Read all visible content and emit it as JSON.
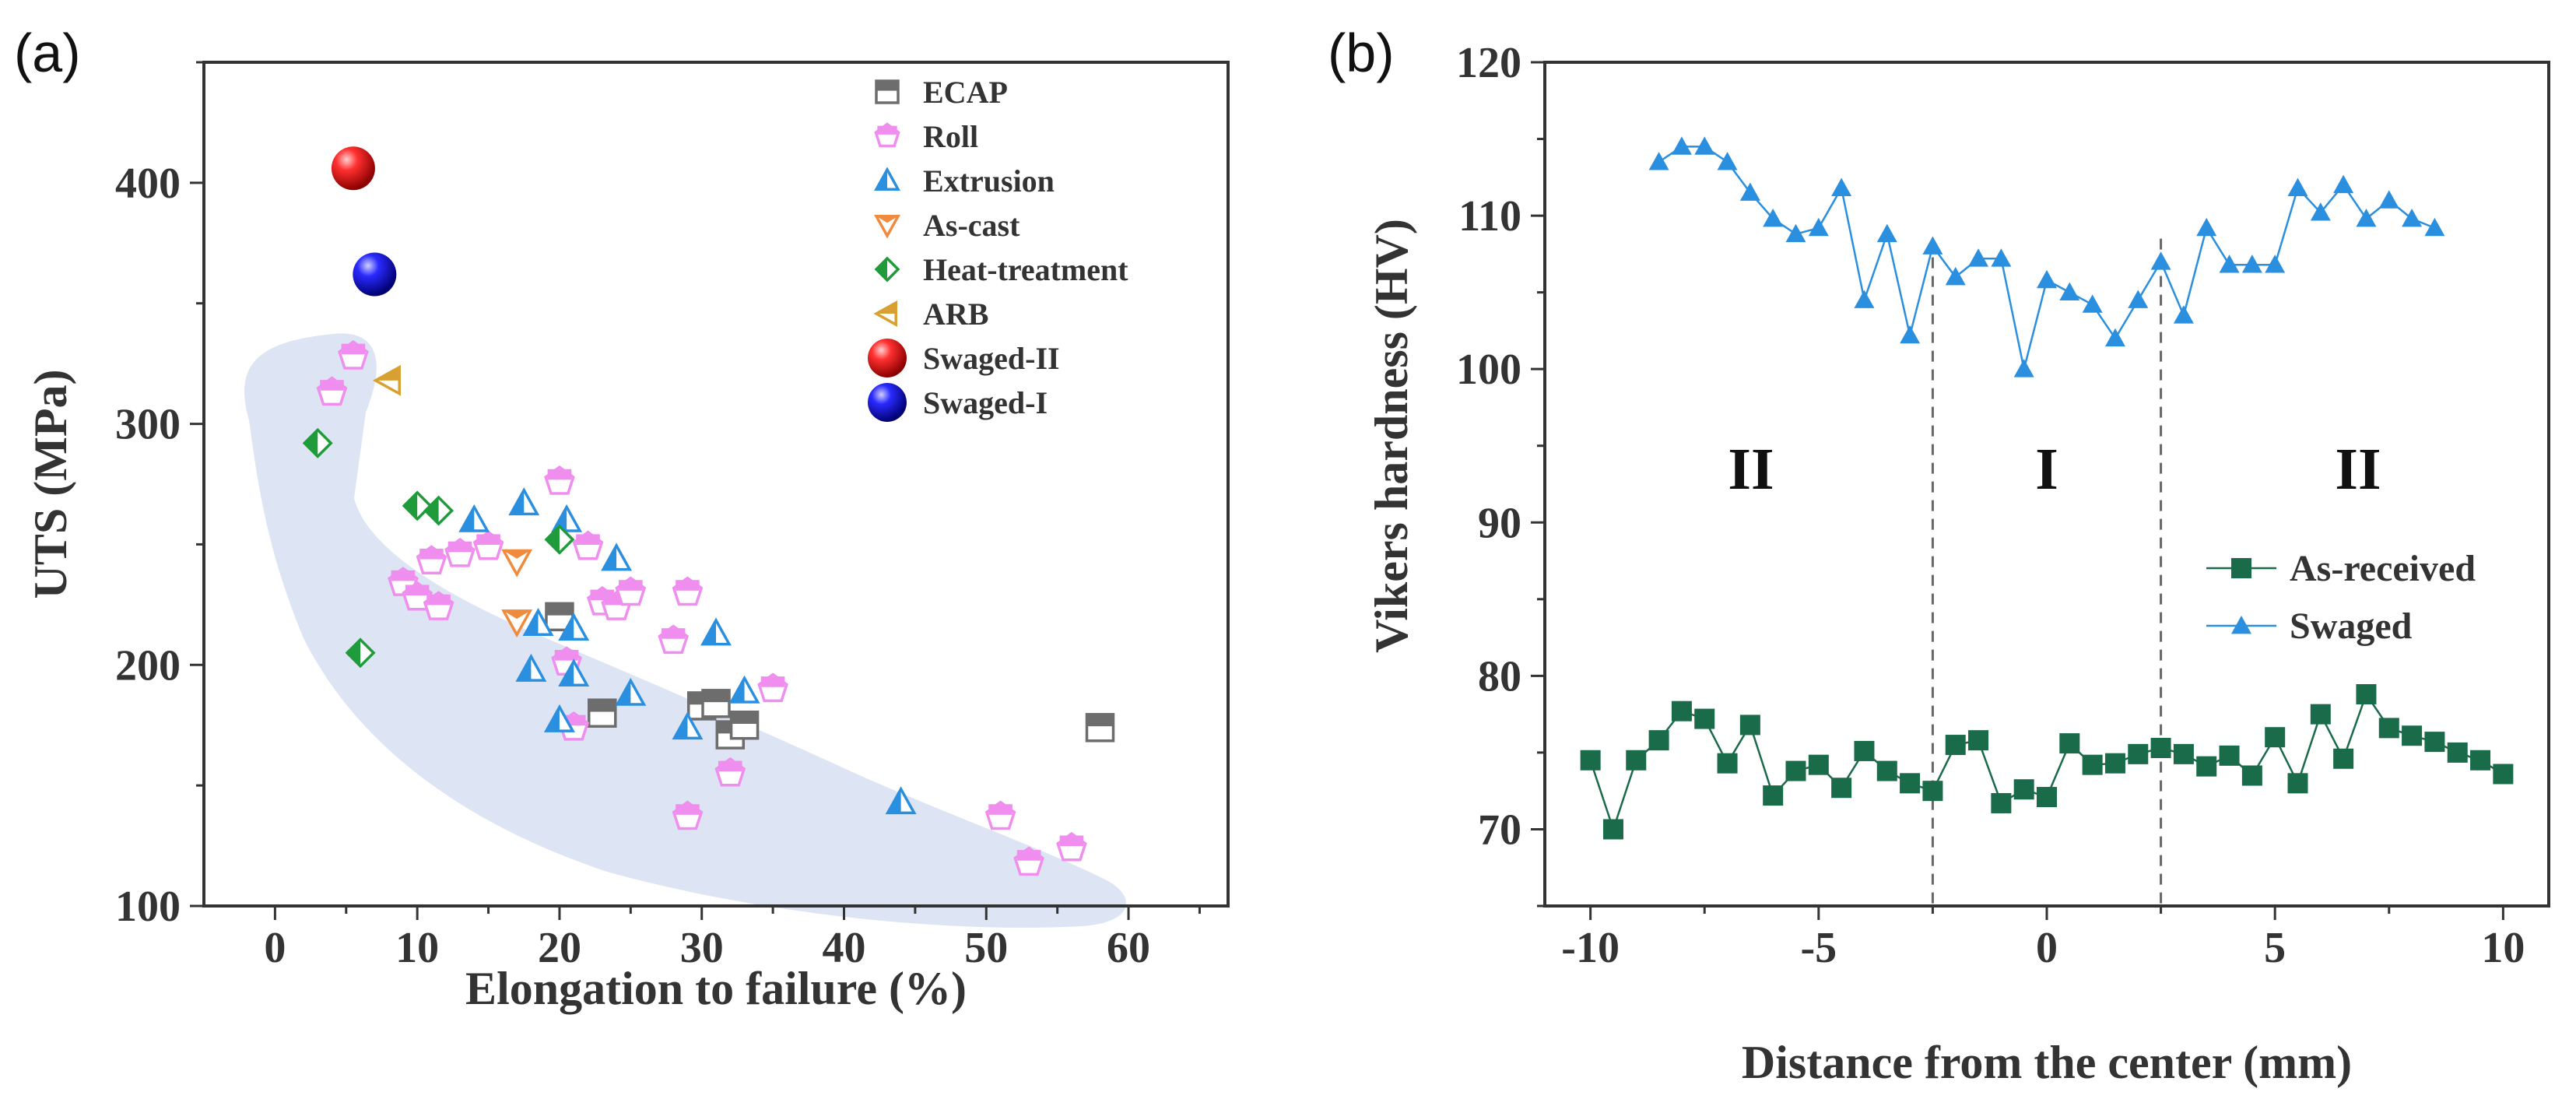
{
  "chart_data": [
    {
      "type": "scatter",
      "panel_label": "(a)",
      "xlabel": "Elongation to failure (%)",
      "ylabel": "UTS (MPa)",
      "xlim": [
        -5,
        67
      ],
      "ylim": [
        100,
        450
      ],
      "xticks": [
        "0",
        "10",
        "20",
        "30",
        "40",
        "50",
        "60"
      ],
      "yticks": [
        "100",
        "200",
        "300",
        "400"
      ],
      "legend_position": "top-right",
      "series": [
        {
          "name": "ECAP",
          "color": "#6d6d6d",
          "marker": "square",
          "x": [
            20,
            23,
            30,
            31,
            32,
            33,
            58
          ],
          "y": [
            220,
            180,
            183,
            184,
            171,
            175,
            174
          ]
        },
        {
          "name": "Roll",
          "color": "#f08ef0",
          "marker": "pentagon",
          "x": [
            4,
            5.5,
            9,
            10,
            11,
            11.5,
            13,
            15,
            20,
            20.5,
            21,
            22,
            23,
            24,
            25,
            28,
            29,
            29,
            32,
            35,
            51,
            53,
            56
          ],
          "y": [
            313,
            328,
            234,
            228,
            243,
            224,
            246,
            249,
            276,
            201,
            174,
            249,
            226,
            224,
            230,
            210,
            230,
            137,
            155,
            190,
            137,
            118,
            124
          ]
        },
        {
          "name": "Extrusion",
          "color": "#2b8fe0",
          "marker": "triangle-up",
          "x": [
            14,
            17.5,
            18,
            18.5,
            20,
            20.5,
            21,
            21,
            24,
            25,
            29,
            31,
            33,
            44
          ],
          "y": [
            260,
            267,
            198,
            217,
            177,
            260,
            196,
            215,
            244,
            188,
            174,
            213,
            189,
            143
          ]
        },
        {
          "name": "As-cast",
          "color": "#f08a3c",
          "marker": "triangle-down",
          "x": [
            17,
            17
          ],
          "y": [
            243,
            218
          ]
        },
        {
          "name": "Heat-treatment",
          "color": "#1f9b3b",
          "marker": "diamond",
          "x": [
            3,
            6,
            10,
            11.5,
            20
          ],
          "y": [
            292,
            205,
            266,
            264,
            252
          ]
        },
        {
          "name": "ARB",
          "color": "#d8a032",
          "marker": "triangle-left",
          "x": [
            8
          ],
          "y": [
            318
          ]
        },
        {
          "name": "Swaged-II",
          "color": "#e51a1a",
          "marker": "sphere",
          "x": [
            5.5
          ],
          "y": [
            406
          ]
        },
        {
          "name": "Swaged-I",
          "color": "#1a1ad6",
          "marker": "sphere",
          "x": [
            7
          ],
          "y": [
            362
          ]
        }
      ]
    },
    {
      "type": "line",
      "panel_label": "(b)",
      "xlabel": "Distance from the center (mm)",
      "ylabel": "Vikers hardness (HV)",
      "xlim": [
        -11,
        11
      ],
      "ylim": [
        65,
        120
      ],
      "xticks": [
        "-10",
        "-5",
        "0",
        "5",
        "10"
      ],
      "yticks": [
        "70",
        "80",
        "90",
        "100",
        "110",
        "120"
      ],
      "legend_position": "center-right",
      "annotations": [
        "II",
        "I",
        "II"
      ],
      "vlines": [
        -2.5,
        2.5
      ],
      "series": [
        {
          "name": "As-received",
          "color": "#1a6b4a",
          "marker": "square",
          "x": [
            -10,
            -9.5,
            -9,
            -8.5,
            -8,
            -7.5,
            -7,
            -6.5,
            -6,
            -5.5,
            -5,
            -4.5,
            -4,
            -3.5,
            -3,
            -2.5,
            -2,
            -1.5,
            -1,
            -0.5,
            0,
            0.5,
            1,
            1.5,
            2,
            2.5,
            3,
            3.5,
            4,
            4.5,
            5,
            5.5,
            6,
            6.5,
            7,
            7.5,
            8,
            8.5,
            9,
            9.5,
            10
          ],
          "y": [
            74.5,
            70,
            74.5,
            75.8,
            77.7,
            77.2,
            74.3,
            76.8,
            72.2,
            73.8,
            74.2,
            72.7,
            75.1,
            73.8,
            73,
            72.5,
            75.5,
            75.8,
            71.7,
            72.6,
            72.1,
            75.6,
            74.2,
            74.3,
            74.9,
            75.3,
            74.9,
            74.1,
            74.8,
            73.5,
            76,
            73,
            77.5,
            74.6,
            78.8,
            76.6,
            76.1,
            75.7,
            75,
            74.5,
            73.6
          ]
        },
        {
          "name": "Swaged",
          "color": "#2b8fe0",
          "marker": "triangle-up",
          "x": [
            -8.5,
            -8,
            -7.5,
            -7,
            -6.5,
            -6,
            -5.5,
            -5,
            -4.5,
            -4,
            -3.5,
            -3,
            -2.5,
            -2,
            -1.5,
            -1,
            -0.5,
            0,
            0.5,
            1,
            1.5,
            2,
            2.5,
            3,
            3.5,
            4,
            4.5,
            5,
            5.5,
            6,
            6.5,
            7,
            7.5,
            8,
            8.5
          ],
          "y": [
            113.5,
            114.5,
            114.5,
            113.5,
            111.5,
            109.8,
            108.8,
            109.2,
            111.8,
            104.5,
            108.8,
            102.2,
            108,
            106,
            107.2,
            107.2,
            100,
            105.8,
            105,
            104.2,
            102,
            104.5,
            107,
            103.5,
            109.2,
            106.8,
            106.8,
            106.8,
            111.8,
            110.2,
            112,
            109.8,
            111,
            109.8,
            109.2
          ]
        }
      ]
    }
  ]
}
